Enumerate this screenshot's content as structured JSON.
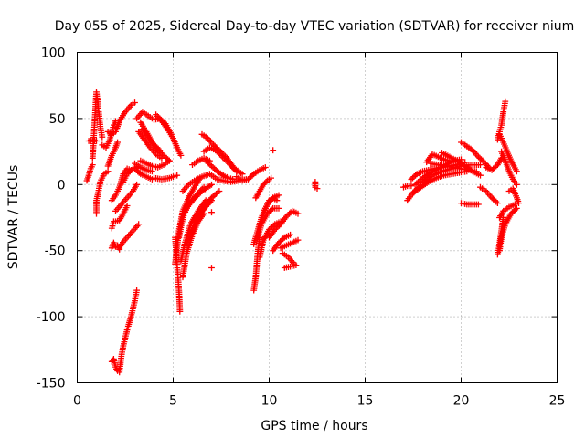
{
  "chart_data": {
    "type": "scatter",
    "title": "Day 055 of 2025, Sidereal Day-to-day VTEC variation (SDTVAR) for receiver nium",
    "xlabel": "GPS time / hours",
    "ylabel": "SDTVAR / TECUs",
    "xlim": [
      0,
      25
    ],
    "ylim": [
      -150,
      100
    ],
    "xticks": [
      "0",
      "5",
      "10",
      "15",
      "20",
      "25"
    ],
    "yticks": [
      "-150",
      "-100",
      "-50",
      "0",
      "50",
      "100"
    ],
    "grid": true,
    "marker": "+",
    "color": "#ff0000",
    "tracks": [
      [
        [
          0.8,
          20
        ],
        [
          0.9,
          45
        ],
        [
          1.0,
          70
        ],
        [
          1.1,
          58
        ],
        [
          1.2,
          44
        ],
        [
          1.3,
          36
        ]
      ],
      [
        [
          0.5,
          3
        ],
        [
          0.6,
          7
        ],
        [
          0.7,
          12
        ],
        [
          0.8,
          15
        ]
      ],
      [
        [
          0.6,
          33
        ],
        [
          0.8,
          34
        ],
        [
          1.0,
          33
        ]
      ],
      [
        [
          1.0,
          -22
        ],
        [
          1.0,
          -12
        ],
        [
          1.1,
          -6
        ],
        [
          1.2,
          2
        ],
        [
          1.4,
          8
        ],
        [
          1.6,
          10
        ]
      ],
      [
        [
          1.3,
          30
        ],
        [
          1.5,
          28
        ],
        [
          1.7,
          34
        ],
        [
          1.8,
          40
        ],
        [
          1.9,
          45
        ],
        [
          2.0,
          48
        ]
      ],
      [
        [
          1.6,
          40
        ],
        [
          1.8,
          38
        ],
        [
          2.0,
          40
        ],
        [
          2.2,
          48
        ],
        [
          2.5,
          55
        ],
        [
          2.8,
          60
        ],
        [
          3.0,
          62
        ]
      ],
      [
        [
          1.6,
          14
        ],
        [
          1.8,
          22
        ],
        [
          2.0,
          28
        ],
        [
          2.1,
          32
        ]
      ],
      [
        [
          1.8,
          -12
        ],
        [
          2.0,
          -8
        ],
        [
          2.2,
          -2
        ],
        [
          2.4,
          8
        ],
        [
          2.6,
          12
        ],
        [
          2.8,
          11
        ]
      ],
      [
        [
          1.8,
          -33
        ],
        [
          1.9,
          -28
        ],
        [
          2.0,
          -28
        ],
        [
          2.2,
          -27
        ],
        [
          2.4,
          -22
        ],
        [
          2.6,
          -16
        ]
      ],
      [
        [
          1.8,
          -48
        ],
        [
          1.9,
          -44
        ],
        [
          2.0,
          -47
        ],
        [
          2.1,
          -46
        ],
        [
          2.2,
          -49
        ]
      ],
      [
        [
          2.2,
          -48
        ],
        [
          2.3,
          -45
        ],
        [
          2.6,
          -40
        ],
        [
          2.9,
          -35
        ],
        [
          3.2,
          -30
        ]
      ],
      [
        [
          2.0,
          -20
        ],
        [
          2.3,
          -15
        ],
        [
          2.6,
          -10
        ],
        [
          2.9,
          -5
        ],
        [
          3.1,
          0
        ]
      ],
      [
        [
          2.4,
          2
        ],
        [
          2.6,
          8
        ],
        [
          2.9,
          12
        ],
        [
          3.2,
          14
        ]
      ],
      [
        [
          1.8,
          -134
        ],
        [
          1.9,
          -132
        ],
        [
          2.0,
          -138
        ],
        [
          2.1,
          -141
        ],
        [
          2.2,
          -140
        ]
      ],
      [
        [
          2.2,
          -142
        ],
        [
          2.3,
          -130
        ],
        [
          2.4,
          -122
        ],
        [
          2.6,
          -110
        ],
        [
          2.8,
          -100
        ],
        [
          3.0,
          -88
        ],
        [
          3.1,
          -80
        ]
      ],
      [
        [
          3.0,
          16
        ],
        [
          3.3,
          13
        ],
        [
          3.6,
          11
        ],
        [
          3.9,
          10
        ]
      ],
      [
        [
          3.0,
          12
        ],
        [
          3.3,
          8
        ],
        [
          3.6,
          6
        ],
        [
          3.9,
          4
        ]
      ],
      [
        [
          3.1,
          50
        ],
        [
          3.4,
          55
        ],
        [
          3.7,
          52
        ],
        [
          4.0,
          49
        ],
        [
          4.3,
          50
        ],
        [
          4.6,
          46
        ],
        [
          4.9,
          38
        ]
      ],
      [
        [
          3.2,
          40
        ],
        [
          3.5,
          34
        ],
        [
          3.8,
          28
        ],
        [
          4.1,
          23
        ],
        [
          4.4,
          20
        ]
      ],
      [
        [
          3.3,
          47
        ],
        [
          3.6,
          40
        ],
        [
          3.9,
          32
        ],
        [
          4.2,
          26
        ],
        [
          4.5,
          22
        ],
        [
          4.8,
          18
        ]
      ],
      [
        [
          3.4,
          42
        ],
        [
          3.7,
          36
        ],
        [
          4.0,
          30
        ],
        [
          4.3,
          26
        ]
      ],
      [
        [
          3.3,
          18
        ],
        [
          3.6,
          16
        ],
        [
          3.9,
          14
        ],
        [
          4.2,
          13
        ],
        [
          4.5,
          15
        ],
        [
          4.8,
          18
        ]
      ],
      [
        [
          4.0,
          5
        ],
        [
          4.4,
          4
        ],
        [
          4.8,
          5
        ],
        [
          5.2,
          7
        ]
      ],
      [
        [
          4.1,
          53
        ],
        [
          4.4,
          48
        ],
        [
          4.7,
          42
        ],
        [
          5.0,
          35
        ],
        [
          5.2,
          28
        ],
        [
          5.4,
          22
        ]
      ],
      [
        [
          5.1,
          -40
        ],
        [
          5.2,
          -60
        ],
        [
          5.3,
          -80
        ],
        [
          5.35,
          -96
        ]
      ],
      [
        [
          5.1,
          -60
        ],
        [
          5.3,
          -35
        ],
        [
          5.5,
          -20
        ],
        [
          5.8,
          -10
        ],
        [
          6.1,
          -2
        ],
        [
          6.4,
          5
        ]
      ],
      [
        [
          5.3,
          -40
        ],
        [
          5.5,
          -25
        ],
        [
          5.8,
          -15
        ],
        [
          6.2,
          -8
        ],
        [
          6.6,
          -2
        ]
      ],
      [
        [
          5.4,
          -58
        ],
        [
          5.6,
          -45
        ],
        [
          5.9,
          -30
        ],
        [
          6.3,
          -20
        ],
        [
          6.7,
          -12
        ]
      ],
      [
        [
          5.5,
          -5
        ],
        [
          5.8,
          0
        ],
        [
          6.1,
          3
        ],
        [
          6.5,
          6
        ],
        [
          6.9,
          8
        ]
      ],
      [
        [
          5.5,
          -70
        ],
        [
          5.7,
          -52
        ],
        [
          6.0,
          -38
        ],
        [
          6.3,
          -28
        ],
        [
          6.6,
          -22
        ]
      ],
      [
        [
          5.6,
          -20
        ],
        [
          6.0,
          -12
        ],
        [
          6.5,
          -5
        ],
        [
          7.0,
          0
        ]
      ],
      [
        [
          5.7,
          -45
        ],
        [
          6.1,
          -30
        ],
        [
          6.5,
          -20
        ],
        [
          7.0,
          -12
        ]
      ],
      [
        [
          6.0,
          15
        ],
        [
          6.3,
          18
        ],
        [
          6.6,
          20
        ],
        [
          6.9,
          18
        ]
      ],
      [
        [
          6.2,
          -28
        ],
        [
          6.6,
          -18
        ],
        [
          7.0,
          -10
        ],
        [
          7.4,
          -5
        ]
      ],
      [
        [
          6.5,
          38
        ],
        [
          6.8,
          35
        ],
        [
          7.1,
          30
        ],
        [
          7.4,
          26
        ],
        [
          7.8,
          20
        ],
        [
          8.2,
          12
        ],
        [
          8.6,
          8
        ]
      ],
      [
        [
          6.6,
          25
        ],
        [
          6.9,
          28
        ],
        [
          7.2,
          26
        ],
        [
          7.5,
          22
        ],
        [
          7.9,
          16
        ],
        [
          8.3,
          10
        ]
      ],
      [
        [
          6.7,
          18
        ],
        [
          7.0,
          14
        ],
        [
          7.3,
          10
        ],
        [
          7.7,
          6
        ],
        [
          8.1,
          4
        ]
      ],
      [
        [
          7.0,
          7
        ],
        [
          7.3,
          4
        ],
        [
          7.6,
          3
        ],
        [
          8.0,
          2
        ],
        [
          8.4,
          3
        ],
        [
          8.8,
          4
        ]
      ],
      [
        [
          7.0,
          -21
        ]
      ],
      [
        [
          7.0,
          -63
        ]
      ],
      [
        [
          8.3,
          6
        ],
        [
          8.6,
          3
        ],
        [
          8.9,
          4
        ],
        [
          9.2,
          8
        ],
        [
          9.5,
          11
        ],
        [
          9.8,
          13
        ]
      ],
      [
        [
          9.2,
          -80
        ],
        [
          9.3,
          -70
        ],
        [
          9.4,
          -52
        ],
        [
          9.5,
          -40
        ]
      ],
      [
        [
          9.2,
          -45
        ],
        [
          9.4,
          -35
        ],
        [
          9.6,
          -25
        ],
        [
          9.8,
          -18
        ],
        [
          10.0,
          -12
        ],
        [
          10.2,
          -10
        ],
        [
          10.4,
          -12
        ]
      ],
      [
        [
          9.3,
          -10
        ],
        [
          9.5,
          -5
        ],
        [
          9.7,
          0
        ],
        [
          9.9,
          3
        ],
        [
          10.1,
          5
        ]
      ],
      [
        [
          9.4,
          -40
        ],
        [
          9.6,
          -30
        ],
        [
          9.9,
          -22
        ],
        [
          10.2,
          -18
        ],
        [
          10.5,
          -18
        ]
      ],
      [
        [
          9.5,
          -55
        ],
        [
          9.7,
          -42
        ],
        [
          10.0,
          -34
        ],
        [
          10.3,
          -30
        ],
        [
          10.6,
          -28
        ]
      ],
      [
        [
          9.6,
          -25
        ],
        [
          9.9,
          -15
        ],
        [
          10.2,
          -10
        ],
        [
          10.5,
          -8
        ]
      ],
      [
        [
          10.0,
          -40
        ],
        [
          10.3,
          -34
        ],
        [
          10.6,
          -30
        ],
        [
          10.9,
          -24
        ],
        [
          11.2,
          -20
        ],
        [
          11.5,
          -22
        ]
      ],
      [
        [
          10.2,
          26
        ]
      ],
      [
        [
          10.2,
          -50
        ],
        [
          10.5,
          -44
        ],
        [
          10.8,
          -40
        ],
        [
          11.1,
          -38
        ]
      ],
      [
        [
          10.6,
          -48
        ],
        [
          10.9,
          -46
        ],
        [
          11.2,
          -44
        ],
        [
          11.5,
          -42
        ]
      ],
      [
        [
          10.7,
          -52
        ],
        [
          11.0,
          -55
        ],
        [
          11.3,
          -60
        ]
      ],
      [
        [
          10.8,
          -63
        ],
        [
          11.1,
          -62
        ],
        [
          11.4,
          -61
        ]
      ],
      [
        [
          12.4,
          2
        ],
        [
          12.4,
          -2
        ],
        [
          12.5,
          -3
        ]
      ],
      [
        [
          17.0,
          -2
        ],
        [
          17.2,
          -1
        ],
        [
          17.4,
          -1
        ]
      ],
      [
        [
          17.2,
          -12
        ],
        [
          17.4,
          -8
        ],
        [
          17.7,
          -3
        ],
        [
          18.0,
          0
        ]
      ],
      [
        [
          17.4,
          4
        ],
        [
          17.7,
          8
        ],
        [
          18.0,
          10
        ],
        [
          18.3,
          11
        ],
        [
          18.6,
          12
        ],
        [
          19.0,
          13
        ],
        [
          19.4,
          14
        ],
        [
          19.8,
          15
        ],
        [
          20.2,
          17
        ]
      ],
      [
        [
          17.5,
          -6
        ],
        [
          17.9,
          -2
        ],
        [
          18.3,
          2
        ],
        [
          18.7,
          5
        ],
        [
          19.1,
          7
        ],
        [
          19.5,
          8
        ],
        [
          19.9,
          9
        ],
        [
          20.3,
          10
        ]
      ],
      [
        [
          17.6,
          0
        ],
        [
          18.0,
          5
        ],
        [
          18.4,
          9
        ],
        [
          18.8,
          12
        ],
        [
          19.2,
          15
        ],
        [
          19.6,
          18
        ],
        [
          20.0,
          19
        ]
      ],
      [
        [
          18.0,
          2
        ],
        [
          18.5,
          7
        ],
        [
          19.0,
          10
        ],
        [
          19.5,
          12
        ],
        [
          20.0,
          14
        ],
        [
          20.5,
          15
        ],
        [
          21.0,
          15
        ]
      ],
      [
        [
          18.2,
          17
        ],
        [
          18.5,
          23
        ],
        [
          18.8,
          21
        ],
        [
          19.1,
          19
        ],
        [
          19.4,
          18
        ],
        [
          19.7,
          17
        ]
      ],
      [
        [
          18.4,
          16
        ],
        [
          18.8,
          15
        ],
        [
          19.2,
          14
        ],
        [
          19.6,
          13
        ],
        [
          20.0,
          12
        ],
        [
          20.4,
          11
        ],
        [
          20.8,
          10
        ]
      ],
      [
        [
          19.0,
          24
        ],
        [
          19.4,
          21
        ],
        [
          19.8,
          18
        ],
        [
          20.2,
          14
        ],
        [
          20.6,
          10
        ],
        [
          21.0,
          7
        ]
      ],
      [
        [
          20.0,
          32
        ],
        [
          20.3,
          29
        ],
        [
          20.6,
          26
        ],
        [
          20.9,
          21
        ],
        [
          21.2,
          17
        ],
        [
          21.5,
          12
        ]
      ],
      [
        [
          20.0,
          -14
        ],
        [
          20.3,
          -15
        ],
        [
          20.6,
          -15
        ],
        [
          20.9,
          -15
        ]
      ],
      [
        [
          21.0,
          -2
        ],
        [
          21.3,
          -5
        ],
        [
          21.6,
          -10
        ],
        [
          21.9,
          -14
        ]
      ],
      [
        [
          21.3,
          13
        ],
        [
          21.6,
          11
        ],
        [
          21.9,
          15
        ],
        [
          22.1,
          20
        ]
      ],
      [
        [
          21.9,
          -53
        ],
        [
          22.0,
          -45
        ],
        [
          22.1,
          -35
        ],
        [
          22.2,
          -25
        ]
      ],
      [
        [
          22.0,
          -50
        ],
        [
          22.1,
          -40
        ],
        [
          22.3,
          -30
        ],
        [
          22.6,
          -22
        ],
        [
          22.9,
          -18
        ]
      ],
      [
        [
          22.0,
          -25
        ],
        [
          22.2,
          -20
        ],
        [
          22.5,
          -17
        ],
        [
          22.8,
          -15
        ]
      ],
      [
        [
          21.9,
          34
        ],
        [
          22.0,
          40
        ],
        [
          22.1,
          45
        ],
        [
          22.2,
          55
        ],
        [
          22.3,
          63
        ]
      ],
      [
        [
          22.0,
          38
        ],
        [
          22.2,
          32
        ],
        [
          22.4,
          25
        ],
        [
          22.6,
          18
        ],
        [
          22.9,
          10
        ]
      ],
      [
        [
          22.1,
          25
        ],
        [
          22.3,
          18
        ],
        [
          22.5,
          10
        ],
        [
          22.7,
          4
        ],
        [
          22.9,
          0
        ]
      ],
      [
        [
          22.5,
          -5
        ],
        [
          22.7,
          -3
        ],
        [
          22.9,
          -10
        ],
        [
          23.0,
          -14
        ]
      ]
    ]
  }
}
